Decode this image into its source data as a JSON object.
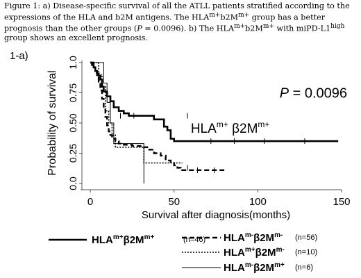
{
  "figure": {
    "caption_html": "Figure 1: a) Disease-specific survival of all the ATLL patients stratified according to the expressions of the HLA and b2M antigens. The HLA<sup>m+</sup>b2M<sup>m+</sup> group has a better prognosis than the other groups (<i>P</i> = 0.0096). b) The HLA<sup>m+</sup>b2M<sup>m+</sup> with miPD-L1<sup>high</sup> group shows an excellent prognosis.",
    "panel_label": "1-a)"
  },
  "chart_data": {
    "type": "line",
    "subtype": "kaplan-meier",
    "title": "",
    "xlabel": "Survival after diagnosis(months)",
    "ylabel": "Probability of survival",
    "xlim": [
      -5,
      150
    ],
    "ylim": [
      0,
      1.0
    ],
    "x_ticks": [
      0,
      50,
      100,
      150
    ],
    "y_ticks": [
      "0.0",
      "0.25",
      "0.50",
      "0.75",
      "1.0"
    ],
    "y_tick_values": [
      0,
      0.25,
      0.5,
      0.75,
      1.0
    ],
    "annotations": [
      {
        "text_prefix": "P",
        "text_suffix": " = 0.0096",
        "x": 113,
        "y": 0.71
      },
      {
        "text": "HLA^m+ β2M^m+",
        "x": 60,
        "y": 0.42
      }
    ],
    "legend_position": "below",
    "series": [
      {
        "id": "hla_pos_b2m_pos",
        "label_base1": "HLA",
        "label_sup1": "m+",
        "label_base2": "β2M",
        "label_sup2": "m+",
        "n_label": "(n=46)",
        "style": "thick-solid",
        "points": [
          [
            0,
            1.0
          ],
          [
            1,
            0.98
          ],
          [
            2,
            0.96
          ],
          [
            3,
            0.93
          ],
          [
            4,
            0.91
          ],
          [
            5,
            0.89
          ],
          [
            6,
            0.86
          ],
          [
            7,
            0.8
          ],
          [
            8,
            0.76
          ],
          [
            10,
            0.72
          ],
          [
            12,
            0.68
          ],
          [
            14,
            0.63
          ],
          [
            17,
            0.6
          ],
          [
            20,
            0.58
          ],
          [
            23,
            0.56
          ],
          [
            38,
            0.56
          ],
          [
            38,
            0.53
          ],
          [
            44,
            0.53
          ],
          [
            44,
            0.47
          ],
          [
            46,
            0.47
          ],
          [
            46,
            0.44
          ],
          [
            48,
            0.44
          ],
          [
            48,
            0.37
          ],
          [
            50,
            0.37
          ],
          [
            50,
            0.35
          ],
          [
            148,
            0.35
          ]
        ]
      },
      {
        "id": "hla_neg_b2m_neg",
        "label_base1": "HLA",
        "label_sup1": "m-",
        "label_base2": "β2M",
        "label_sup2": "m-",
        "n_label": "(n=56)",
        "style": "thick-dashed",
        "points": [
          [
            0,
            1.0
          ],
          [
            2,
            0.96
          ],
          [
            3,
            0.92
          ],
          [
            4,
            0.88
          ],
          [
            5,
            0.84
          ],
          [
            6,
            0.77
          ],
          [
            7,
            0.7
          ],
          [
            8,
            0.62
          ],
          [
            9,
            0.55
          ],
          [
            10,
            0.48
          ],
          [
            11,
            0.43
          ],
          [
            12,
            0.4
          ],
          [
            13,
            0.37
          ],
          [
            15,
            0.35
          ],
          [
            17,
            0.33
          ],
          [
            20,
            0.32
          ],
          [
            25,
            0.31
          ],
          [
            30,
            0.3
          ],
          [
            34,
            0.28
          ],
          [
            38,
            0.25
          ],
          [
            42,
            0.23
          ],
          [
            45,
            0.19
          ],
          [
            48,
            0.17
          ],
          [
            50,
            0.15
          ],
          [
            52,
            0.13
          ],
          [
            54,
            0.11
          ],
          [
            80,
            0.11
          ]
        ]
      },
      {
        "id": "hla_pos_b2m_neg",
        "label_base1": "HLA",
        "label_sup1": "m+",
        "label_base2": "β2M",
        "label_sup2": "m-",
        "n_label": "(n=10)",
        "style": "dotted",
        "points": [
          [
            0,
            1.0
          ],
          [
            5,
            0.9
          ],
          [
            7,
            0.8
          ],
          [
            9,
            0.6
          ],
          [
            11,
            0.5
          ],
          [
            13,
            0.4
          ],
          [
            15,
            0.3
          ],
          [
            32,
            0.3
          ],
          [
            32,
            0.17
          ],
          [
            55,
            0.17
          ]
        ]
      },
      {
        "id": "hla_neg_b2m_pos",
        "label_base1": "HLA",
        "label_sup1": "m-",
        "label_base2": "β2M",
        "label_sup2": "m+",
        "n_label": "(n=6)",
        "style": "thin-solid",
        "points": [
          [
            0,
            1.0
          ],
          [
            8,
            1.0
          ],
          [
            8,
            0.83
          ],
          [
            10,
            0.83
          ],
          [
            10,
            0.67
          ],
          [
            12,
            0.67
          ],
          [
            12,
            0.5
          ],
          [
            14,
            0.5
          ],
          [
            14,
            0.33
          ],
          [
            32,
            0.33
          ],
          [
            32,
            0.0
          ]
        ]
      }
    ]
  }
}
